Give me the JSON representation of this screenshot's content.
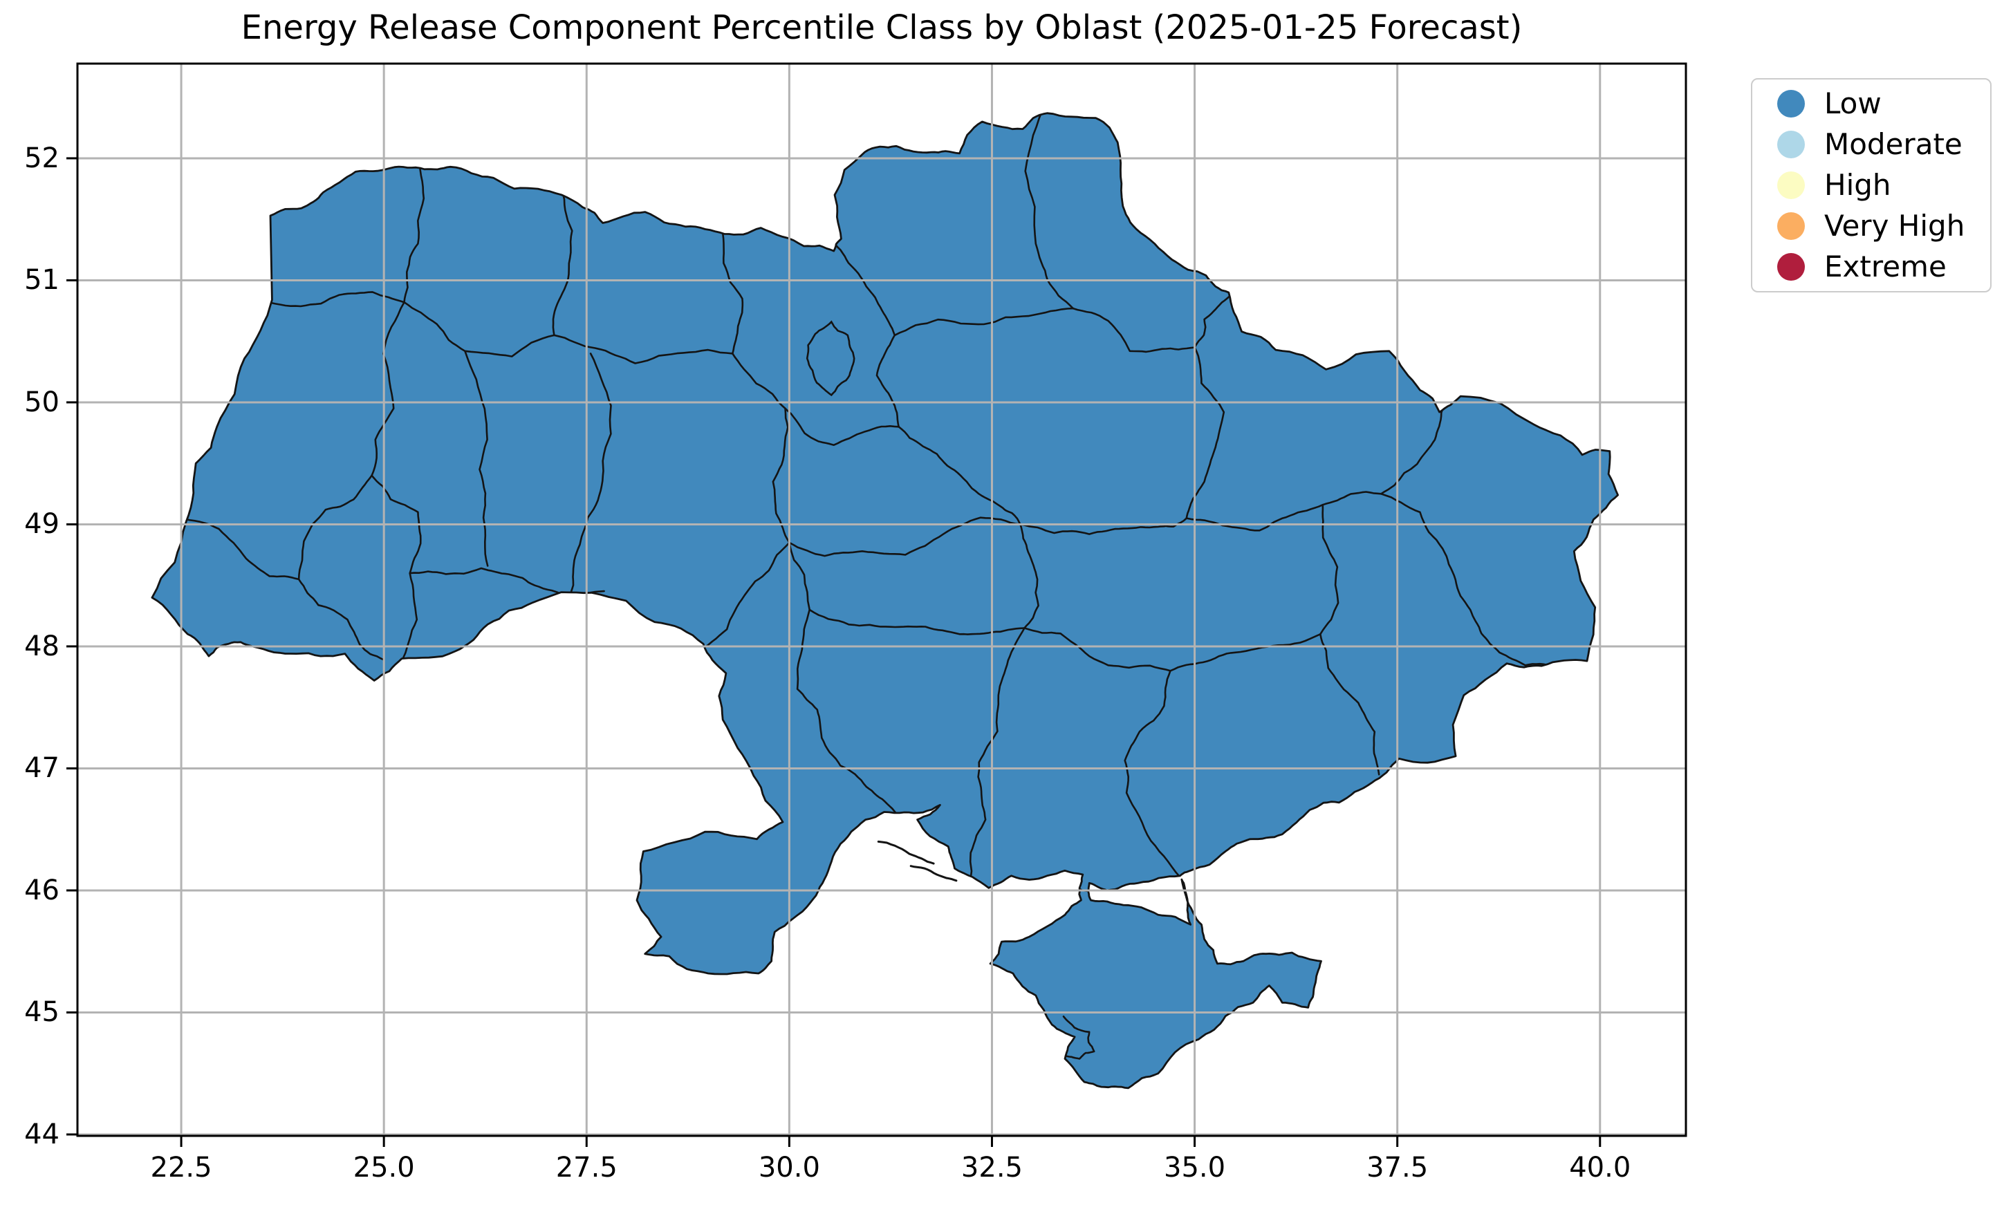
{
  "title": "Energy Release Component Percentile Class by Oblast (2025-01-25 Forecast)",
  "axes": {
    "x_tick_labels": [
      "22.5",
      "25.0",
      "27.5",
      "30.0",
      "32.5",
      "35.0",
      "37.5",
      "40.0"
    ],
    "x_tick_values": [
      22.5,
      25.0,
      27.5,
      30.0,
      32.5,
      35.0,
      37.5,
      40.0
    ],
    "y_tick_labels": [
      "44",
      "45",
      "46",
      "47",
      "48",
      "49",
      "50",
      "51",
      "52"
    ],
    "y_tick_values": [
      44,
      45,
      46,
      47,
      48,
      49,
      50,
      51,
      52
    ],
    "grid": true,
    "grid_color": "#b3b3b3",
    "spine_color": "#000000"
  },
  "legend": {
    "position": "upper right",
    "entries": [
      {
        "label": "Low",
        "color": "#4189bd"
      },
      {
        "label": "Moderate",
        "color": "#aed7e8"
      },
      {
        "label": "High",
        "color": "#fcfcc2"
      },
      {
        "label": "Very High",
        "color": "#fbae61"
      },
      {
        "label": "Extreme",
        "color": "#b01e3d"
      }
    ]
  },
  "map": {
    "region_fill_class": "Low",
    "region_fill_color": "#4189bd",
    "region_border_color": "#141414",
    "background": "#ffffff"
  },
  "chart_data": {
    "type": "choropleth",
    "title": "Energy Release Component Percentile Class by Oblast (2025-01-25 Forecast)",
    "geography": "Ukraine, oblast-level administrative regions (including Crimea, Kyiv city and Sevastopol)",
    "classes": [
      "Low",
      "Moderate",
      "High",
      "Very High",
      "Extreme"
    ],
    "class_colors": [
      "#4189bd",
      "#aed7e8",
      "#fcfcc2",
      "#fbae61",
      "#b01e3d"
    ],
    "all_regions_value": "Low",
    "note": "Every oblast polygon is filled with the Low class color",
    "xlabel": "",
    "ylabel": "",
    "xlim": [
      21.22,
      41.06
    ],
    "ylim": [
      43.99,
      52.78
    ],
    "x_ticks": [
      22.5,
      25.0,
      27.5,
      30.0,
      32.5,
      35.0,
      37.5,
      40.0
    ],
    "y_ticks": [
      44,
      45,
      46,
      47,
      48,
      49,
      50,
      51,
      52
    ],
    "grid": true,
    "legend_position": "upper right"
  }
}
